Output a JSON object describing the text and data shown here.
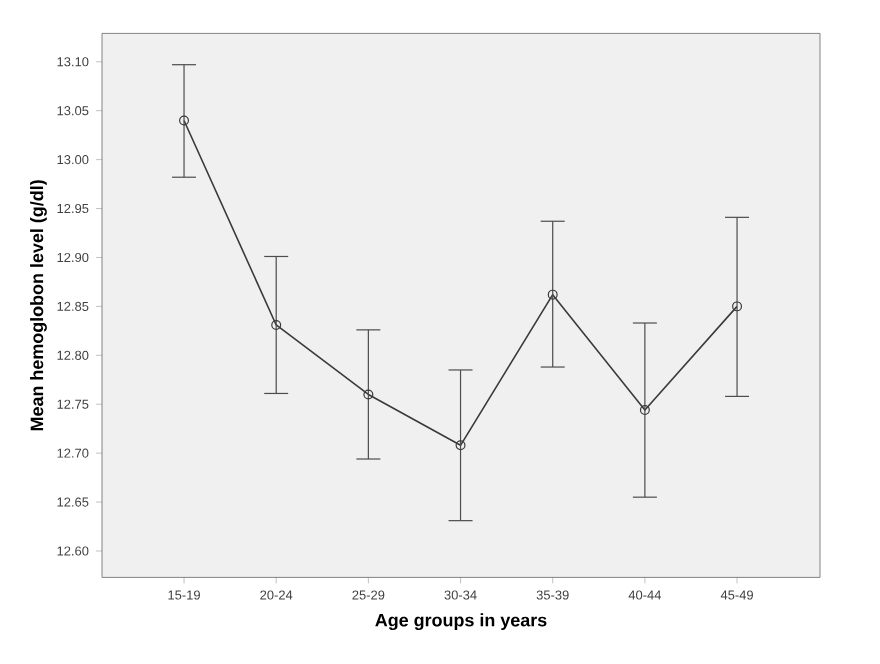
{
  "chart_data": {
    "type": "line",
    "xlabel": "Age groups in years",
    "ylabel": "Mean hemoglobon level (g/dl)",
    "categories": [
      "15-19",
      "20-24",
      "25-29",
      "30-34",
      "35-39",
      "40-44",
      "45-49"
    ],
    "series": [
      {
        "color": "#3a3a3a",
        "values": [
          13.04,
          12.831,
          12.76,
          12.708,
          12.862,
          12.744,
          12.85
        ],
        "errors": [
          [
            12.982,
            13.097
          ],
          [
            12.761,
            12.901
          ],
          [
            12.694,
            12.826
          ],
          [
            12.631,
            12.785
          ],
          [
            12.788,
            12.937
          ],
          [
            12.655,
            12.833
          ],
          [
            12.758,
            12.941
          ]
        ]
      }
    ],
    "ylim": [
      12.573,
      13.129
    ],
    "yticks": [
      {
        "value": 12.6,
        "label": "12.60"
      },
      {
        "value": 12.65,
        "label": "12.65"
      },
      {
        "value": 12.7,
        "label": "12.70"
      },
      {
        "value": 12.75,
        "label": "12.75"
      },
      {
        "value": 12.8,
        "label": "12.80"
      },
      {
        "value": 12.85,
        "label": "12.85"
      },
      {
        "value": 12.9,
        "label": "12.90"
      },
      {
        "value": 12.95,
        "label": "12.95"
      },
      {
        "value": 13.0,
        "label": "13.00"
      },
      {
        "value": 13.05,
        "label": "13.05"
      },
      {
        "value": 13.1,
        "label": "13.10"
      }
    ],
    "grid": false,
    "marker": "circle",
    "line_style": "solid"
  }
}
